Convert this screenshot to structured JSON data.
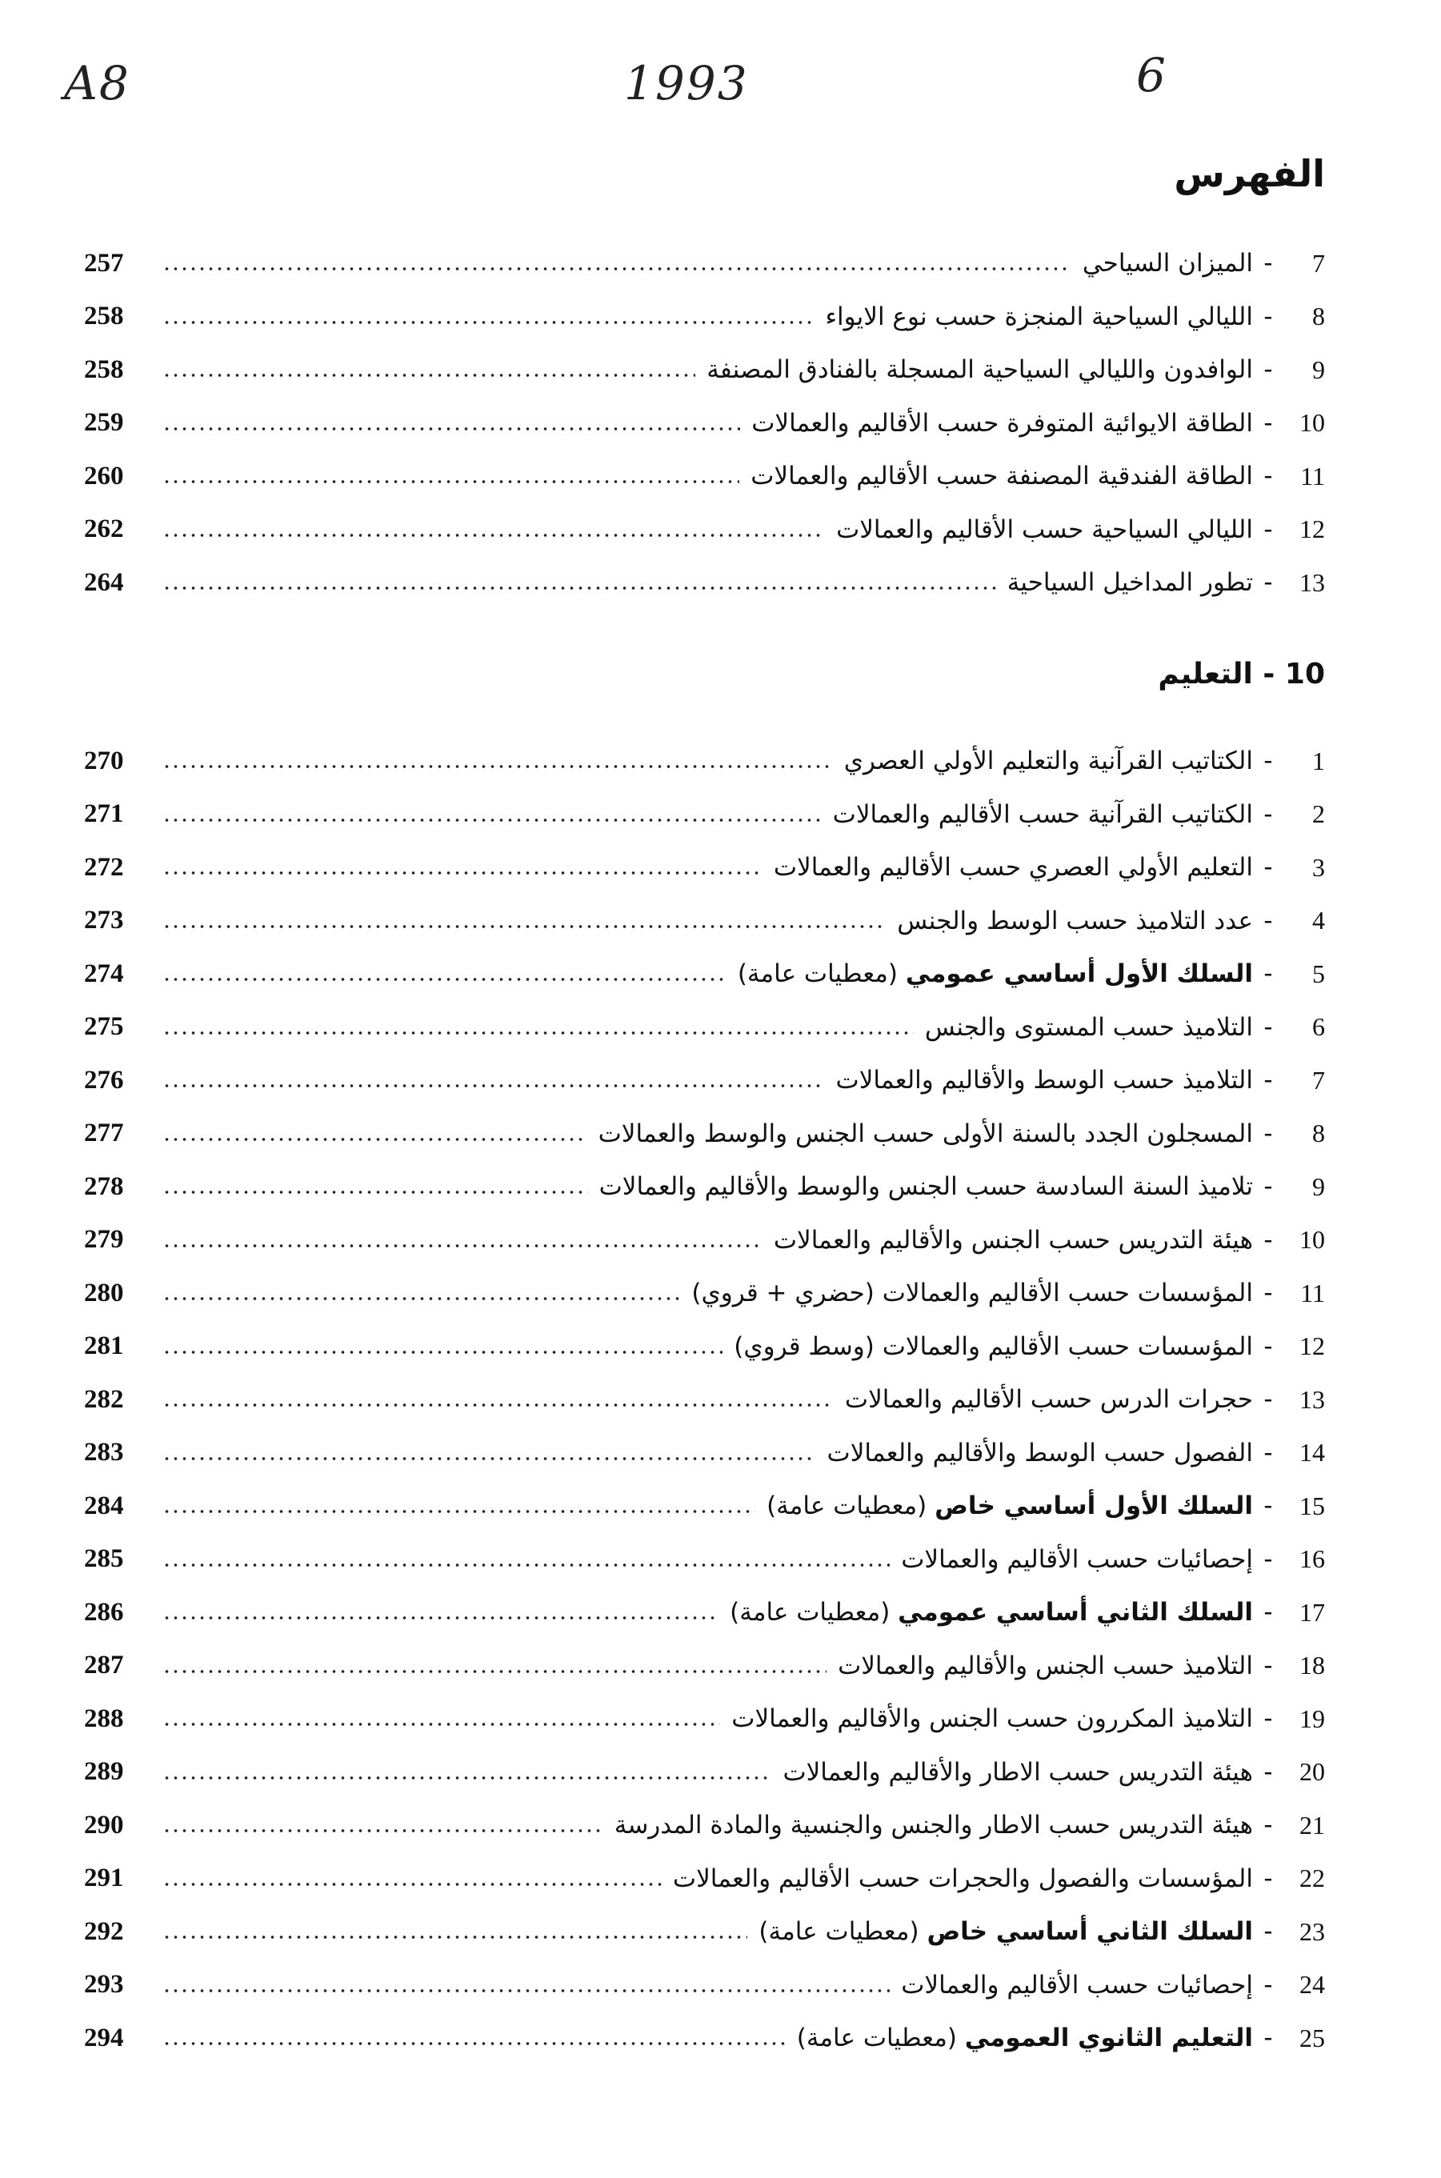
{
  "handwritten_marks": [
    "A8",
    "1993",
    "6"
  ],
  "title": "الفهرس",
  "section1_entries": [
    {
      "num": "7",
      "bold": "",
      "text": "الميزان السياحي",
      "page": "257"
    },
    {
      "num": "8",
      "bold": "",
      "text": "الليالي السياحية المنجزة حسب نوع الايواء",
      "page": "258"
    },
    {
      "num": "9",
      "bold": "",
      "text": "الوافدون والليالي السياحية المسجلة بالفنادق المصنفة",
      "page": "258"
    },
    {
      "num": "10",
      "bold": "",
      "text": "الطاقة الايوائية المتوفرة حسب الأقاليم والعمالات",
      "page": "259"
    },
    {
      "num": "11",
      "bold": "",
      "text": "الطاقة الفندقية المصنفة حسب الأقاليم والعمالات",
      "page": "260"
    },
    {
      "num": "12",
      "bold": "",
      "text": "الليالي السياحية حسب الأقاليم والعمالات",
      "page": "262"
    },
    {
      "num": "13",
      "bold": "",
      "text": "تطور المداخيل السياحية",
      "page": "264"
    }
  ],
  "section2": {
    "heading": "10 - التعليم",
    "entries": [
      {
        "num": "1",
        "bold": "",
        "text": "الكتاتيب القرآنية والتعليم الأولي العصري",
        "page": "270"
      },
      {
        "num": "2",
        "bold": "",
        "text": "الكتاتيب القرآنية حسب الأقاليم والعمالات",
        "page": "271"
      },
      {
        "num": "3",
        "bold": "",
        "text": "التعليم الأولي العصري حسب الأقاليم والعمالات",
        "page": "272"
      },
      {
        "num": "4",
        "bold": "",
        "text": "عدد التلاميذ حسب الوسط والجنس",
        "page": "273"
      },
      {
        "num": "5",
        "bold": "السلك الأول أساسي عمومي",
        "text": "(معطيات عامة)",
        "page": "274"
      },
      {
        "num": "6",
        "bold": "",
        "text": "التلاميذ حسب المستوى والجنس",
        "page": "275"
      },
      {
        "num": "7",
        "bold": "",
        "text": "التلاميذ حسب الوسط والأقاليم والعمالات",
        "page": "276"
      },
      {
        "num": "8",
        "bold": "",
        "text": "المسجلون الجدد بالسنة الأولى حسب الجنس والوسط والعمالات",
        "page": "277"
      },
      {
        "num": "9",
        "bold": "",
        "text": "تلاميذ السنة السادسة حسب الجنس والوسط والأقاليم والعمالات",
        "page": "278"
      },
      {
        "num": "10",
        "bold": "",
        "text": "هيئة التدريس حسب الجنس والأقاليم والعمالات",
        "page": "279"
      },
      {
        "num": "11",
        "bold": "",
        "text": "المؤسسات حسب الأقاليم والعمالات (حضري + قروي)",
        "page": "280"
      },
      {
        "num": "12",
        "bold": "",
        "text": "المؤسسات حسب الأقاليم والعمالات (وسط قروي)",
        "page": "281"
      },
      {
        "num": "13",
        "bold": "",
        "text": "حجرات الدرس حسب الأقاليم والعمالات",
        "page": "282"
      },
      {
        "num": "14",
        "bold": "",
        "text": "الفصول حسب الوسط والأقاليم والعمالات",
        "page": "283"
      },
      {
        "num": "15",
        "bold": "السلك الأول أساسي خاص",
        "text": "(معطيات عامة)",
        "page": "284"
      },
      {
        "num": "16",
        "bold": "",
        "text": "إحصائيات حسب الأقاليم والعمالات",
        "page": "285"
      },
      {
        "num": "17",
        "bold": "السلك الثاني أساسي عمومي",
        "text": "(معطيات عامة)",
        "page": "286"
      },
      {
        "num": "18",
        "bold": "",
        "text": "التلاميذ حسب الجنس والأقاليم والعمالات",
        "page": "287"
      },
      {
        "num": "19",
        "bold": "",
        "text": "التلاميذ المكررون حسب الجنس والأقاليم والعمالات",
        "page": "288"
      },
      {
        "num": "20",
        "bold": "",
        "text": "هيئة التدريس حسب الاطار والأقاليم والعمالات",
        "page": "289"
      },
      {
        "num": "21",
        "bold": "",
        "text": "هيئة التدريس حسب الاطار والجنس والجنسية والمادة المدرسة",
        "page": "290"
      },
      {
        "num": "22",
        "bold": "",
        "text": "المؤسسات والفصول والحجرات حسب الأقاليم والعمالات",
        "page": "291"
      },
      {
        "num": "23",
        "bold": "السلك الثاني أساسي خاص",
        "text": "(معطيات عامة)",
        "page": "292"
      },
      {
        "num": "24",
        "bold": "",
        "text": "إحصائيات حسب الأقاليم والعمالات",
        "page": "293"
      },
      {
        "num": "25",
        "bold": "التعليم الثانوي العمومي",
        "text": "(معطيات عامة)",
        "page": "294"
      }
    ]
  },
  "dash": "-"
}
